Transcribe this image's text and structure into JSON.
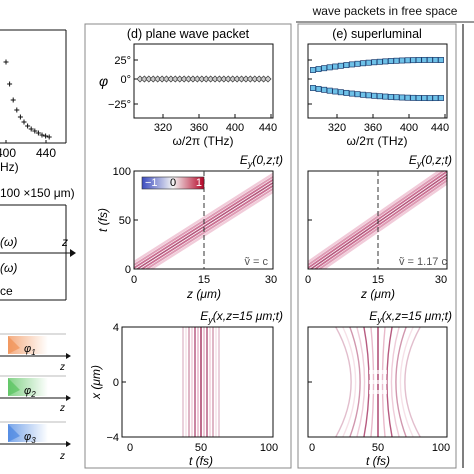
{
  "figure": {
    "group_title": "wave packets in free space",
    "panel_d_title": "(d) plane wave packet",
    "panel_e_title": "(e) superluminal"
  },
  "left_fragment": {
    "freq_ticks": [
      "400",
      "440"
    ],
    "freq_unit_partial": "Hz)",
    "crosses_y": [
      62,
      84,
      100,
      110,
      117,
      122,
      126,
      129,
      131,
      133,
      135,
      136,
      137
    ],
    "dims_text": "100 ×150 μm)",
    "omega1": "(ω)",
    "omega2": "(ω)",
    "z_label": "z",
    "partial_word": "ce",
    "phi_labels": [
      "φ1",
      "φ2",
      "φ3"
    ],
    "phi_base": "φ",
    "phi_subs": [
      "1",
      "2",
      "3"
    ],
    "colors": [
      "#f08a4b",
      "#4fbf55",
      "#3f7fe0"
    ]
  },
  "spectrum": {
    "phi_label": "φ",
    "y_ticks": [
      "25°",
      "0°",
      "−25°"
    ],
    "x_ticks": [
      "320",
      "360",
      "400",
      "440"
    ],
    "x_label": "ω/2π (THz)",
    "d_points_count": 30,
    "e_points_count": 24
  },
  "spacetime": {
    "title": "Ey (0,z;t)",
    "title_base": "E",
    "title_sub": "y",
    "title_args": "(0,z;t)",
    "t_label": "t (fs)",
    "t_ticks": [
      "100",
      "50",
      "0"
    ],
    "z_ticks": [
      "0",
      "15",
      "30"
    ],
    "z_label": "z (μm)",
    "colorbar_ticks": [
      "−1",
      "0",
      "1"
    ],
    "colors": {
      "negative": "#3b4cc0",
      "positive": "#b40426"
    },
    "d_velocity": "ṽ = c",
    "e_velocity": "ṽ = 1.17 c"
  },
  "transverse": {
    "title": "Ey (x,z=15 μm;t)",
    "title_base": "E",
    "title_sub": "y",
    "title_args": "(x,z=15 μm;t)",
    "x_label": "x (μm)",
    "x_ticks": [
      "4",
      "0",
      "−4"
    ],
    "t_ticks": [
      "0",
      "50",
      "100"
    ],
    "t_label": "t (fs)"
  }
}
